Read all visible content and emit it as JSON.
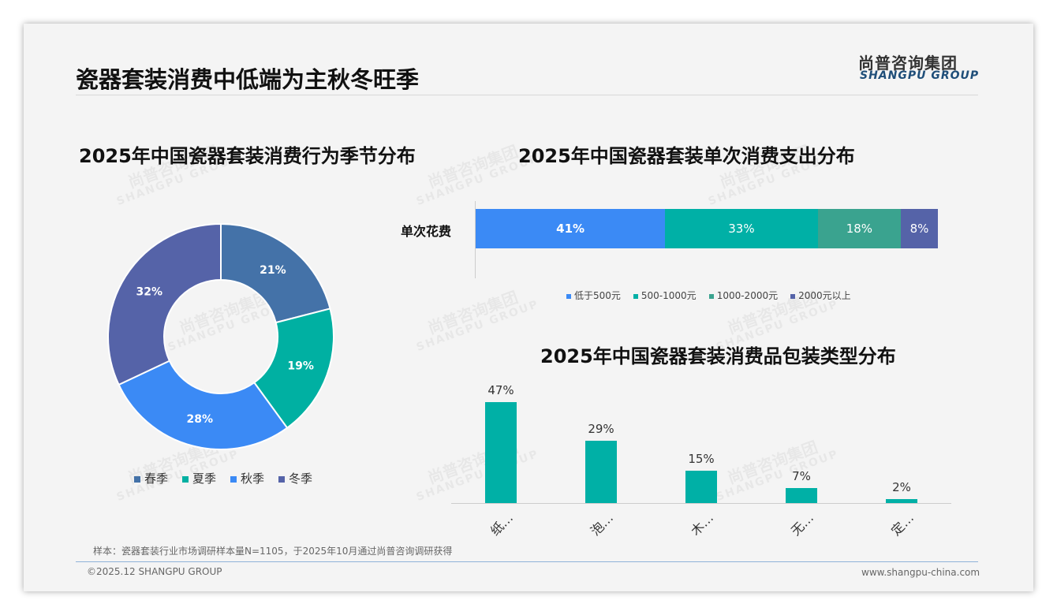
{
  "header": {
    "title": "瓷器套装消费中低端为主秋冬旺季",
    "logo_cn": "尚普咨询集团",
    "logo_en": "SHANGPU GROUP"
  },
  "chart_data": [
    {
      "type": "pie",
      "title": "2025年中国瓷器套装消费行为季节分布",
      "categories": [
        "春季",
        "夏季",
        "秋季",
        "冬季"
      ],
      "values": [
        21,
        19,
        28,
        32
      ],
      "labels": [
        "21%",
        "19%",
        "28%",
        "32%"
      ],
      "colors": [
        "#4472a8",
        "#00b0a2",
        "#3b8af5",
        "#5563a8"
      ],
      "legend": "bottom"
    },
    {
      "type": "bar",
      "stacked": true,
      "orientation": "horizontal",
      "title": "2025年中国瓷器套装单次消费支出分布",
      "categories": [
        "单次花费"
      ],
      "series": [
        {
          "name": "低于500元",
          "values": [
            41
          ],
          "label": "41%",
          "color": "#3b8af5"
        },
        {
          "name": "500-1000元",
          "values": [
            33
          ],
          "label": "33%",
          "color": "#00b0a6"
        },
        {
          "name": "1000-2000元",
          "values": [
            18
          ],
          "label": "18%",
          "color": "#3aa38f"
        },
        {
          "name": "2000元以上",
          "values": [
            8
          ],
          "label": "8%",
          "color": "#5563a8"
        }
      ],
      "legend": "bottom"
    },
    {
      "type": "bar",
      "title": "2025年中国瓷器套装消费品包装类型分布",
      "categories": [
        "纸…",
        "泡…",
        "木…",
        "无…",
        "定…"
      ],
      "values": [
        47,
        29,
        15,
        7,
        2
      ],
      "labels": [
        "47%",
        "29%",
        "15%",
        "7%",
        "2%"
      ],
      "color": "#00b0a6",
      "ylim": [
        0,
        50
      ]
    }
  ],
  "footer": {
    "note": "样本：瓷器套装行业市场调研样本量N=1105，于2025年10月通过尚普咨询调研获得",
    "copyright": "©2025.12 SHANGPU GROUP",
    "website": "www.shangpu-china.com"
  },
  "watermark": {
    "cn": "尚普咨询集团",
    "en": "SHANGPU GROUP"
  }
}
